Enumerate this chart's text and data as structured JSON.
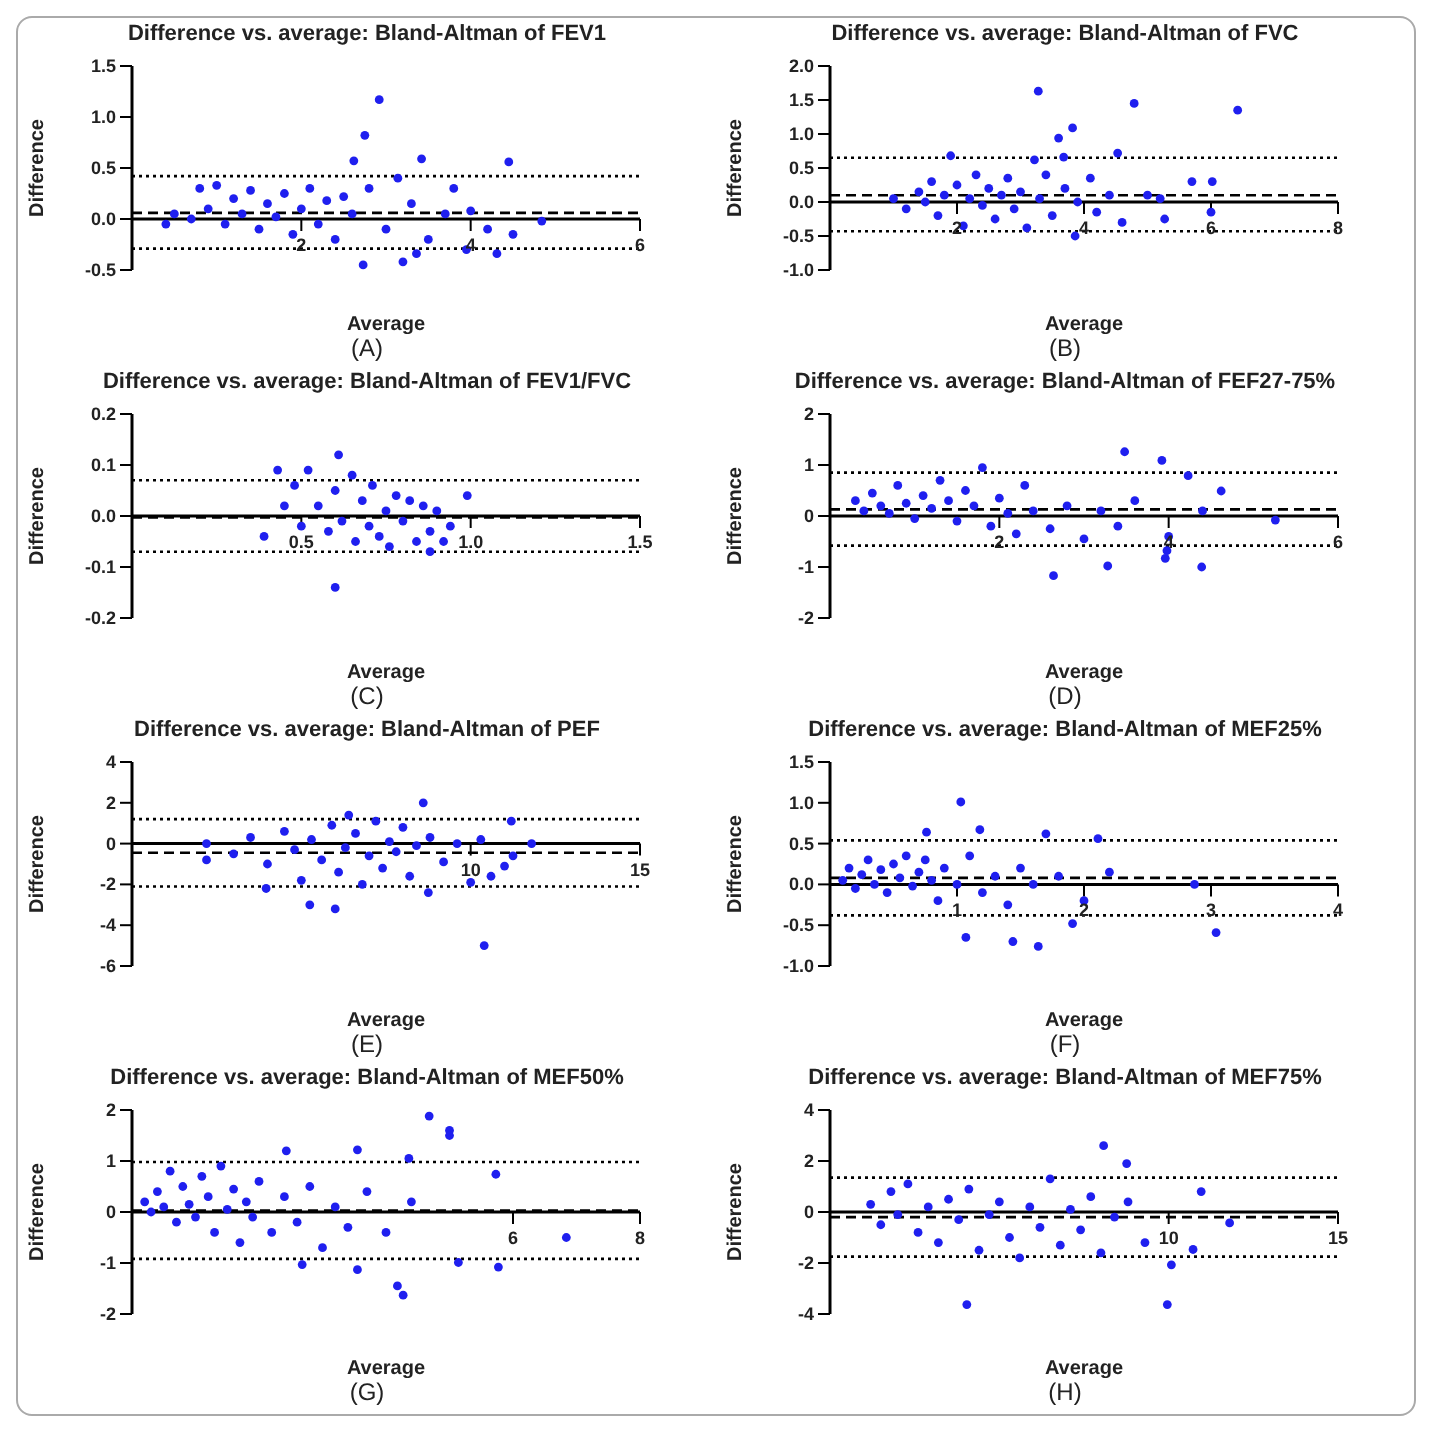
{
  "chart_data": [
    {
      "type": "scatter",
      "title": "Difference vs. average: Bland-Altman of FEV1",
      "xlabel": "Average",
      "ylabel": "Difference",
      "annotations": [
        "(A)"
      ],
      "color": "#1f1fef",
      "marker": "circle",
      "xlim": [
        0,
        6
      ],
      "xticks": [
        2,
        4,
        6
      ],
      "ylim": [
        -0.5,
        1.5
      ],
      "yticks": [
        {
          "value": -0.5,
          "label": "-0.5"
        },
        {
          "value": 0,
          "label": "0.0"
        },
        {
          "value": 0.5,
          "label": "0.5"
        },
        {
          "value": 1,
          "label": "1.0"
        },
        {
          "value": 1.5,
          "label": "1.5"
        }
      ],
      "x": [
        0.4,
        0.5,
        0.7,
        0.8,
        0.9,
        1.0,
        1.1,
        1.2,
        1.3,
        1.4,
        1.5,
        1.6,
        1.7,
        1.8,
        1.9,
        2.0,
        2.1,
        2.2,
        2.3,
        2.4,
        2.5,
        2.6,
        2.62,
        2.73,
        2.75,
        2.8,
        2.92,
        3.0,
        3.14,
        3.2,
        3.3,
        3.36,
        3.42,
        3.5,
        3.7,
        3.8,
        3.95,
        4.0,
        4.2,
        4.31,
        4.45,
        4.5,
        4.84
      ],
      "values": [
        -0.05,
        0.05,
        0.0,
        0.3,
        0.1,
        0.33,
        -0.05,
        0.2,
        0.05,
        0.28,
        -0.1,
        0.15,
        0.02,
        0.25,
        -0.15,
        0.1,
        0.3,
        -0.05,
        0.18,
        -0.2,
        0.22,
        0.05,
        0.57,
        -0.45,
        0.82,
        0.3,
        1.17,
        -0.1,
        0.4,
        -0.42,
        0.15,
        -0.34,
        0.59,
        -0.2,
        0.05,
        0.3,
        -0.3,
        0.08,
        -0.1,
        -0.34,
        0.56,
        -0.15,
        -0.02
      ],
      "ref_lines": [
        {
          "axis": "y",
          "value": 0.42,
          "color": "#000000",
          "line_style": "dotted"
        },
        {
          "axis": "y",
          "value": 0.06,
          "color": "#000000",
          "line_style": "dashed"
        },
        {
          "axis": "y",
          "value": -0.29,
          "color": "#000000",
          "line_style": "dotted"
        }
      ]
    },
    {
      "type": "scatter",
      "title": "Difference vs. average: Bland-Altman of FVC",
      "xlabel": "Average",
      "ylabel": "Difference",
      "annotations": [
        "(B)"
      ],
      "color": "#1f1fef",
      "marker": "circle",
      "xlim": [
        0,
        8
      ],
      "xticks": [
        2,
        4,
        6,
        8
      ],
      "ylim": [
        -1,
        2
      ],
      "yticks": [
        {
          "value": -1,
          "label": "-1.0"
        },
        {
          "value": -0.5,
          "label": "-0.5"
        },
        {
          "value": 0,
          "label": "0.0"
        },
        {
          "value": 0.5,
          "label": "0.5"
        },
        {
          "value": 1,
          "label": "1.0"
        },
        {
          "value": 1.5,
          "label": "1.5"
        },
        {
          "value": 2,
          "label": "2.0"
        }
      ],
      "x": [
        1.0,
        1.2,
        1.4,
        1.5,
        1.6,
        1.7,
        1.8,
        2.0,
        2.1,
        2.2,
        2.3,
        2.4,
        2.5,
        2.6,
        2.7,
        2.8,
        2.9,
        3.0,
        3.1,
        3.3,
        3.4,
        3.5,
        3.7,
        3.9,
        4.1,
        4.2,
        4.4,
        4.6,
        5.0,
        5.2,
        3.28,
        4.79,
        6.42,
        3.82,
        3.6,
        3.68,
        4.53,
        3.22,
        1.9,
        3.86,
        6.0,
        5.7,
        6.02,
        5.27
      ],
      "values": [
        0.05,
        -0.1,
        0.15,
        0.0,
        0.3,
        -0.2,
        0.1,
        0.25,
        -0.35,
        0.05,
        0.4,
        -0.05,
        0.2,
        -0.25,
        0.1,
        0.35,
        -0.1,
        0.15,
        -0.38,
        0.05,
        0.4,
        -0.2,
        0.2,
        0.0,
        0.35,
        -0.15,
        0.1,
        -0.3,
        0.1,
        0.05,
        1.63,
        1.45,
        1.35,
        1.09,
        0.94,
        0.66,
        0.72,
        0.62,
        0.68,
        -0.5,
        -0.15,
        0.3,
        0.3,
        -0.25
      ],
      "ref_lines": [
        {
          "axis": "y",
          "value": 0.65,
          "color": "#000000",
          "line_style": "dotted"
        },
        {
          "axis": "y",
          "value": 0.1,
          "color": "#000000",
          "line_style": "dashed"
        },
        {
          "axis": "y",
          "value": -0.43,
          "color": "#000000",
          "line_style": "dotted"
        }
      ]
    },
    {
      "type": "scatter",
      "title": "Difference vs. average: Bland-Altman of FEV1/FVC",
      "xlabel": "Average",
      "ylabel": "Difference",
      "annotations": [
        "(C)"
      ],
      "color": "#1f1fef",
      "marker": "circle",
      "xlim": [
        0,
        1.5
      ],
      "xticks": [
        {
          "value": 0.5,
          "label": "0.5"
        },
        {
          "value": 1,
          "label": "1.0"
        },
        {
          "value": 1.5,
          "label": "1.5"
        }
      ],
      "ylim": [
        -0.2,
        0.2
      ],
      "yticks": [
        {
          "value": -0.2,
          "label": "-0.2"
        },
        {
          "value": -0.1,
          "label": "-0.1"
        },
        {
          "value": 0,
          "label": "0.0"
        },
        {
          "value": 0.1,
          "label": "0.1"
        },
        {
          "value": 0.2,
          "label": "0.2"
        }
      ],
      "x": [
        0.55,
        0.58,
        0.6,
        0.62,
        0.65,
        0.66,
        0.68,
        0.7,
        0.71,
        0.73,
        0.75,
        0.76,
        0.78,
        0.8,
        0.82,
        0.84,
        0.86,
        0.88,
        0.9,
        0.92,
        0.94,
        0.5,
        0.45,
        0.48,
        0.61,
        0.43,
        0.52,
        0.6,
        0.39,
        0.99,
        0.88
      ],
      "values": [
        0.02,
        -0.03,
        0.05,
        -0.01,
        0.08,
        -0.05,
        0.03,
        -0.02,
        0.06,
        -0.04,
        0.01,
        -0.06,
        0.04,
        -0.01,
        0.03,
        -0.05,
        0.02,
        -0.03,
        0.01,
        -0.05,
        -0.02,
        -0.02,
        0.02,
        0.06,
        0.12,
        0.09,
        0.09,
        -0.14,
        -0.04,
        0.04,
        -0.07
      ],
      "ref_lines": [
        {
          "axis": "y",
          "value": 0.07,
          "color": "#000000",
          "line_style": "dotted"
        },
        {
          "axis": "y",
          "value": -0.003,
          "color": "#000000",
          "line_style": "dashed"
        },
        {
          "axis": "y",
          "value": -0.07,
          "color": "#000000",
          "line_style": "dotted"
        }
      ]
    },
    {
      "type": "scatter",
      "title": "Difference vs. average: Bland-Altman of FEF27-75%",
      "xlabel": "Average",
      "ylabel": "Difference",
      "annotations": [
        "(D)"
      ],
      "color": "#1f1fef",
      "marker": "circle",
      "xlim": [
        0,
        6
      ],
      "xticks": [
        2,
        4,
        6
      ],
      "ylim": [
        -2,
        2
      ],
      "yticks": [
        -2,
        -1,
        0,
        1,
        2
      ],
      "x": [
        0.3,
        0.4,
        0.5,
        0.6,
        0.7,
        0.8,
        0.9,
        1.0,
        1.1,
        1.2,
        1.3,
        1.4,
        1.5,
        1.6,
        1.7,
        1.8,
        1.9,
        2.0,
        2.1,
        2.2,
        2.3,
        2.4,
        2.6,
        2.8,
        3.0,
        3.2,
        3.4,
        3.6,
        4.0,
        4.4,
        3.48,
        3.92,
        2.64,
        3.28,
        4.39,
        3.96,
        3.98,
        5.26,
        4.62,
        4.23
      ],
      "values": [
        0.3,
        0.1,
        0.45,
        0.2,
        0.05,
        0.6,
        0.25,
        -0.05,
        0.4,
        0.15,
        0.7,
        0.3,
        -0.1,
        0.5,
        0.2,
        0.95,
        -0.2,
        0.35,
        0.05,
        -0.35,
        0.6,
        0.1,
        -0.25,
        0.2,
        -0.45,
        0.1,
        -0.2,
        0.3,
        -0.4,
        0.1,
        1.26,
        1.09,
        -1.17,
        -0.98,
        -1.0,
        -0.83,
        -0.68,
        -0.08,
        0.49,
        0.79
      ],
      "ref_lines": [
        {
          "axis": "y",
          "value": 0.85,
          "color": "#000000",
          "line_style": "dotted"
        },
        {
          "axis": "y",
          "value": 0.13,
          "color": "#000000",
          "line_style": "dashed"
        },
        {
          "axis": "y",
          "value": -0.58,
          "color": "#000000",
          "line_style": "dotted"
        }
      ]
    },
    {
      "type": "scatter",
      "title": "Difference vs. average: Bland-Altman of PEF",
      "xlabel": "Average",
      "ylabel": "Difference",
      "annotations": [
        "(E)"
      ],
      "color": "#1f1fef",
      "marker": "circle",
      "xlim": [
        0,
        15
      ],
      "xticks": [
        10,
        15
      ],
      "ylim": [
        -6,
        4
      ],
      "yticks": [
        -6,
        -4,
        -2,
        0,
        2,
        4
      ],
      "x": [
        3.0,
        3.5,
        4.0,
        4.5,
        4.8,
        5.0,
        5.3,
        5.6,
        5.9,
        6.1,
        6.3,
        6.6,
        6.8,
        7.0,
        7.2,
        7.4,
        7.6,
        7.8,
        8.0,
        8.2,
        8.4,
        8.8,
        9.2,
        9.6,
        10.0,
        10.3,
        11.0,
        10.4,
        5.25,
        6.0,
        8.6,
        6.4,
        11.2,
        8.75,
        3.96,
        2.2,
        2.2,
        11.8,
        11.25,
        10.6
      ],
      "values": [
        -0.5,
        0.3,
        -1.0,
        0.6,
        -0.3,
        -1.8,
        0.2,
        -0.8,
        0.9,
        -1.4,
        -0.2,
        0.5,
        -2.0,
        -0.6,
        1.1,
        -1.2,
        0.1,
        -0.4,
        0.8,
        -1.6,
        -0.1,
        0.3,
        -0.9,
        0.0,
        -1.9,
        0.2,
        -1.1,
        -5.0,
        -3.0,
        -3.2,
        2.0,
        1.4,
        1.1,
        -2.4,
        -2.2,
        -0.8,
        0.0,
        0.0,
        -0.6,
        -1.6
      ],
      "ref_lines": [
        {
          "axis": "y",
          "value": 1.2,
          "color": "#000000",
          "line_style": "dotted"
        },
        {
          "axis": "y",
          "value": -0.45,
          "color": "#000000",
          "line_style": "dashed"
        },
        {
          "axis": "y",
          "value": -2.1,
          "color": "#000000",
          "line_style": "dotted"
        }
      ]
    },
    {
      "type": "scatter",
      "title": "Difference vs. average: Bland-Altman of MEF25%",
      "xlabel": "Average",
      "ylabel": "Difference",
      "annotations": [
        "(F)"
      ],
      "color": "#1f1fef",
      "marker": "circle",
      "xlim": [
        0,
        4
      ],
      "xticks": [
        1,
        2,
        3,
        4
      ],
      "ylim": [
        -1,
        1.5
      ],
      "yticks": [
        {
          "value": -1,
          "label": "-1.0"
        },
        {
          "value": -0.5,
          "label": "-0.5"
        },
        {
          "value": 0,
          "label": "0.0"
        },
        {
          "value": 0.5,
          "label": "0.5"
        },
        {
          "value": 1,
          "label": "1.0"
        },
        {
          "value": 1.5,
          "label": "1.5"
        }
      ],
      "x": [
        0.1,
        0.15,
        0.2,
        0.25,
        0.3,
        0.35,
        0.4,
        0.45,
        0.5,
        0.55,
        0.6,
        0.65,
        0.7,
        0.75,
        0.8,
        0.85,
        0.9,
        1.0,
        1.1,
        1.2,
        1.3,
        1.4,
        1.5,
        1.6,
        1.8,
        2.0,
        2.2,
        1.03,
        1.07,
        1.44,
        1.64,
        3.04,
        2.87,
        2.11,
        1.7,
        1.18,
        0.76,
        1.91
      ],
      "values": [
        0.05,
        0.2,
        -0.05,
        0.12,
        0.3,
        0.0,
        0.18,
        -0.1,
        0.25,
        0.08,
        0.35,
        -0.02,
        0.15,
        0.3,
        0.05,
        -0.2,
        0.2,
        0.0,
        0.35,
        -0.1,
        0.1,
        -0.25,
        0.2,
        0.0,
        0.1,
        -0.2,
        0.15,
        1.01,
        -0.65,
        -0.7,
        -0.76,
        -0.59,
        0.0,
        0.56,
        0.62,
        0.67,
        0.64,
        -0.48
      ],
      "ref_lines": [
        {
          "axis": "y",
          "value": 0.54,
          "color": "#000000",
          "line_style": "dotted"
        },
        {
          "axis": "y",
          "value": 0.08,
          "color": "#000000",
          "line_style": "dashed"
        },
        {
          "axis": "y",
          "value": -0.38,
          "color": "#000000",
          "line_style": "dotted"
        }
      ]
    },
    {
      "type": "scatter",
      "title": "Difference vs. average: Bland-Altman of MEF50%",
      "xlabel": "Average",
      "ylabel": "Difference",
      "annotations": [
        "(G)"
      ],
      "color": "#1f1fef",
      "marker": "circle",
      "xlim": [
        0,
        8
      ],
      "xticks": [
        6,
        8
      ],
      "ylim": [
        -2,
        2
      ],
      "yticks": [
        -2,
        -1,
        0,
        1,
        2
      ],
      "x": [
        0.2,
        0.3,
        0.4,
        0.5,
        0.6,
        0.7,
        0.8,
        0.9,
        1.0,
        1.1,
        1.2,
        1.3,
        1.4,
        1.5,
        1.6,
        1.7,
        1.8,
        1.9,
        2.0,
        2.2,
        2.4,
        2.6,
        2.8,
        3.0,
        3.2,
        3.4,
        3.7,
        4.0,
        4.4,
        4.68,
        5.0,
        5.0,
        4.18,
        4.27,
        6.84,
        5.77,
        5.14,
        3.55,
        2.68,
        2.43,
        3.55,
        4.36,
        5.73
      ],
      "values": [
        0.2,
        0.0,
        0.4,
        0.1,
        0.8,
        -0.2,
        0.5,
        0.15,
        -0.1,
        0.7,
        0.3,
        -0.4,
        0.9,
        0.05,
        0.45,
        -0.6,
        0.2,
        -0.1,
        0.6,
        -0.4,
        0.3,
        -0.2,
        0.5,
        -0.7,
        0.1,
        -0.3,
        0.4,
        -0.4,
        0.2,
        1.88,
        1.6,
        1.5,
        -1.45,
        -1.63,
        -0.5,
        -1.08,
        -0.99,
        -1.13,
        -1.03,
        1.2,
        1.22,
        1.05,
        0.74
      ],
      "ref_lines": [
        {
          "axis": "y",
          "value": 0.98,
          "color": "#000000",
          "line_style": "dotted"
        },
        {
          "axis": "y",
          "value": 0.03,
          "color": "#000000",
          "line_style": "dashed"
        },
        {
          "axis": "y",
          "value": -0.92,
          "color": "#000000",
          "line_style": "dotted"
        }
      ]
    },
    {
      "type": "scatter",
      "title": "Difference vs. average: Bland-Altman of MEF75%",
      "xlabel": "Average",
      "ylabel": "Difference",
      "annotations": [
        "(H)"
      ],
      "color": "#1f1fef",
      "marker": "circle",
      "xlim": [
        0,
        15
      ],
      "xticks": [
        10,
        15
      ],
      "ylim": [
        -4,
        4
      ],
      "yticks": [
        -4,
        -2,
        0,
        2,
        4
      ],
      "x": [
        1.2,
        1.5,
        1.8,
        2.0,
        2.3,
        2.6,
        2.9,
        3.2,
        3.5,
        3.8,
        4.1,
        4.4,
        4.7,
        5.0,
        5.3,
        5.6,
        5.9,
        6.2,
        6.5,
        6.8,
        7.1,
        7.4,
        7.7,
        8.0,
        8.4,
        8.8,
        9.3,
        8.08,
        8.76,
        4.04,
        9.96,
        10.08,
        10.96,
        10.72,
        11.8
      ],
      "values": [
        0.3,
        -0.5,
        0.8,
        -0.1,
        1.1,
        -0.8,
        0.2,
        -1.2,
        0.5,
        -0.3,
        0.9,
        -1.5,
        -0.1,
        0.4,
        -1.0,
        -1.8,
        0.2,
        -0.6,
        1.3,
        -1.3,
        0.1,
        -0.7,
        0.6,
        -1.6,
        -0.2,
        0.4,
        -1.2,
        2.6,
        1.9,
        -3.63,
        -3.63,
        -2.07,
        0.8,
        -1.47,
        -0.43
      ],
      "ref_lines": [
        {
          "axis": "y",
          "value": 1.35,
          "color": "#000000",
          "line_style": "dotted"
        },
        {
          "axis": "y",
          "value": -0.2,
          "color": "#000000",
          "line_style": "dashed"
        },
        {
          "axis": "y",
          "value": -1.75,
          "color": "#000000",
          "line_style": "dotted"
        }
      ]
    }
  ]
}
